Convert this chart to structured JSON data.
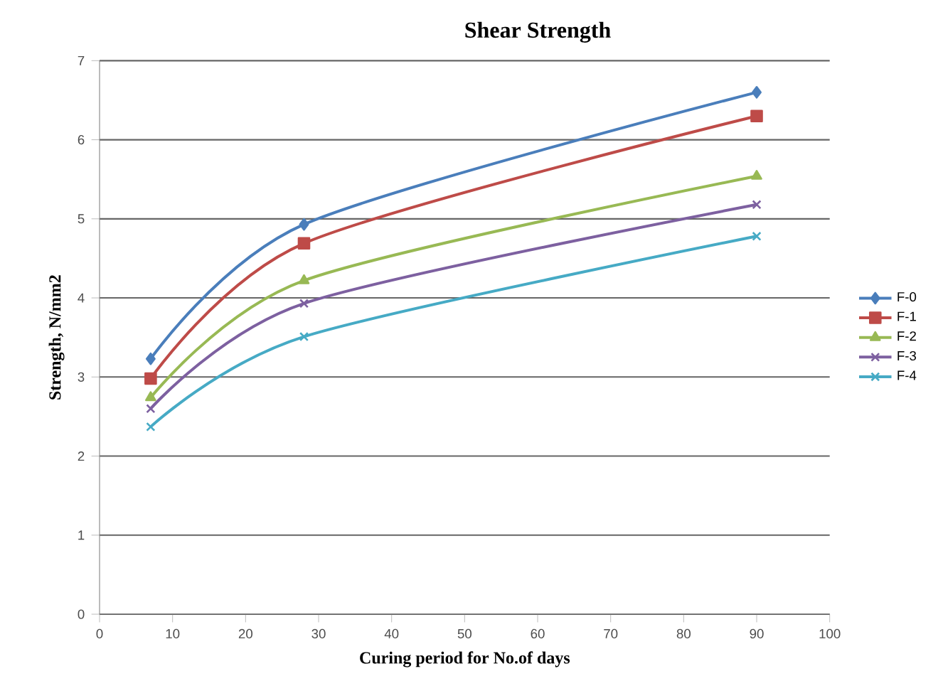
{
  "chart_data": {
    "type": "line",
    "title": "Shear Strength",
    "xlabel": "Curing period for No.of days",
    "ylabel": "Strength, N/mm2",
    "x": [
      7,
      28,
      90
    ],
    "series": [
      {
        "name": "F-0",
        "color": "#4a7ebb",
        "marker": "diamond",
        "values": [
          3.23,
          4.93,
          6.6
        ]
      },
      {
        "name": "F-1",
        "color": "#be4b48",
        "marker": "square",
        "values": [
          2.98,
          4.69,
          6.3
        ]
      },
      {
        "name": "F-2",
        "color": "#98b954",
        "marker": "triangle",
        "values": [
          2.74,
          4.22,
          5.54
        ]
      },
      {
        "name": "F-3",
        "color": "#7d60a0",
        "marker": "cross",
        "values": [
          2.6,
          3.93,
          5.18
        ]
      },
      {
        "name": "F-4",
        "color": "#46aac5",
        "marker": "cross",
        "values": [
          2.37,
          3.51,
          4.78
        ]
      }
    ],
    "xlim": [
      0,
      100
    ],
    "xticks": [
      0,
      10,
      20,
      30,
      40,
      50,
      60,
      70,
      80,
      90,
      100
    ],
    "ylim": [
      0,
      7
    ],
    "yticks": [
      0,
      1,
      2,
      3,
      4,
      5,
      6,
      7
    ],
    "grid": "y",
    "legend": "right"
  }
}
